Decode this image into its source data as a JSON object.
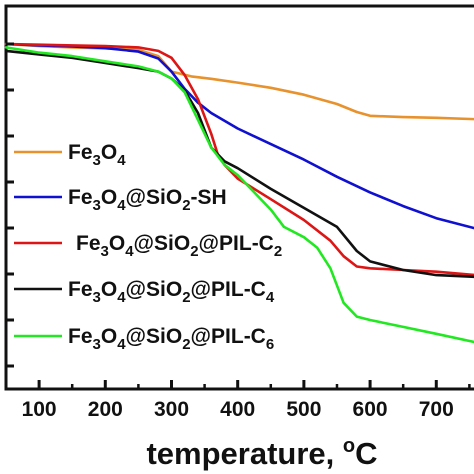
{
  "chart_data": {
    "type": "line",
    "xlabel": "temperature, ",
    "xlabel_unit": "C",
    "xlabel_degree": "o",
    "ylabel": "",
    "xlim": [
      50,
      760
    ],
    "ylim": [
      0,
      100
    ],
    "x_ticks": [
      100,
      200,
      300,
      400,
      500,
      600,
      700
    ],
    "y_tick_count": 8,
    "legend_position": "left",
    "series": [
      {
        "name": "Fe3O4",
        "label_parts": [
          "Fe",
          "3",
          "O",
          "4"
        ],
        "color": "#e8922e",
        "x": [
          50,
          100,
          150,
          200,
          250,
          280,
          300,
          330,
          360,
          400,
          450,
          500,
          550,
          580,
          600,
          650,
          700,
          760
        ],
        "y": [
          100,
          99.4,
          99.0,
          98.7,
          98.3,
          96.5,
          92.0,
          90.6,
          89.9,
          88.8,
          87.3,
          85.3,
          82.6,
          80.3,
          79.2,
          78.8,
          78.6,
          78.2
        ]
      },
      {
        "name": "Fe3O4@SiO2-SH",
        "label_parts": [
          "Fe",
          "3",
          "O",
          "4",
          "@SiO",
          "2",
          "-SH"
        ],
        "color": "#1010d0",
        "x": [
          50,
          100,
          150,
          200,
          250,
          280,
          300,
          320,
          340,
          360,
          400,
          450,
          500,
          550,
          600,
          650,
          700,
          760
        ],
        "y": [
          100,
          99.6,
          99.3,
          98.8,
          97.8,
          95.8,
          92.0,
          87.0,
          83.0,
          80.0,
          75.5,
          71.0,
          66.5,
          61.5,
          57.0,
          53.0,
          49.5,
          46.5
        ]
      },
      {
        "name": "Fe3O4@SiO2@PIL-C2",
        "label_parts": [
          "Fe",
          "3",
          "O",
          "4",
          "@SiO",
          "2",
          "@PIL-C",
          "2"
        ],
        "color": "#dd1515",
        "x": [
          50,
          100,
          150,
          200,
          250,
          280,
          300,
          320,
          340,
          360,
          370,
          380,
          400,
          450,
          500,
          540,
          560,
          580,
          600,
          650,
          700,
          760
        ],
        "y": [
          100,
          99.8,
          99.6,
          99.4,
          99.0,
          98.0,
          96.0,
          91.0,
          84.0,
          74.0,
          68.0,
          65.0,
          61.0,
          55.0,
          49.0,
          43.0,
          38.5,
          35.5,
          35.0,
          34.5,
          34.0,
          33.0
        ]
      },
      {
        "name": "Fe3O4@SiO2@PIL-C4",
        "label_parts": [
          "Fe",
          "3",
          "O",
          "4",
          "@SiO",
          "2",
          "@PIL-C",
          "4"
        ],
        "color": "#111111",
        "x": [
          50,
          100,
          150,
          200,
          250,
          280,
          300,
          320,
          340,
          360,
          380,
          400,
          450,
          500,
          550,
          580,
          600,
          650,
          700,
          760
        ],
        "y": [
          98.0,
          97.0,
          96.0,
          94.5,
          93.0,
          92.0,
          90.0,
          86.5,
          80.0,
          70.0,
          66.0,
          64.0,
          58.0,
          52.5,
          47.0,
          40.0,
          37.0,
          34.5,
          33.0,
          32.5
        ]
      },
      {
        "name": "Fe3O4@SiO2@PIL-C6",
        "label_parts": [
          "Fe",
          "3",
          "O",
          "4",
          "@SiO",
          "2",
          "@PIL-C",
          "6"
        ],
        "color": "#22e822",
        "x": [
          50,
          100,
          150,
          200,
          250,
          280,
          300,
          320,
          340,
          360,
          380,
          400,
          450,
          470,
          500,
          520,
          540,
          560,
          580,
          600,
          650,
          700,
          760
        ],
        "y": [
          99.0,
          97.5,
          96.5,
          95.0,
          93.5,
          92.0,
          90.0,
          86.0,
          78.0,
          70.0,
          65.0,
          62.0,
          52.0,
          47.0,
          44.0,
          41.0,
          35.0,
          25.0,
          21.0,
          20.0,
          18.0,
          16.0,
          13.5
        ]
      }
    ]
  }
}
